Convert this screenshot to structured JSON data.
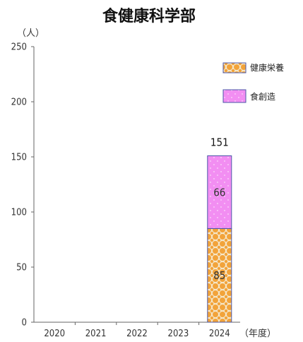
{
  "chart_data": {
    "type": "bar",
    "stacked": true,
    "title": "食健康科学部",
    "y_unit_label": "（人）",
    "x_unit_label": "（年度）",
    "categories": [
      "2020",
      "2021",
      "2022",
      "2023",
      "2024"
    ],
    "ylim": [
      0,
      250
    ],
    "yticks": [
      0,
      50,
      100,
      150,
      200,
      250
    ],
    "grid": false,
    "legend_position": "top-right",
    "series": [
      {
        "name": "健康栄養",
        "values": [
          0,
          0,
          0,
          0,
          85
        ],
        "color": "#f2a33a",
        "pattern": "orange-dot-pattern"
      },
      {
        "name": "食創造",
        "values": [
          0,
          0,
          0,
          0,
          66
        ],
        "color": "#f28ef2",
        "pattern": "pink-dot-pattern"
      }
    ],
    "totals": [
      null,
      null,
      null,
      null,
      151
    ]
  }
}
